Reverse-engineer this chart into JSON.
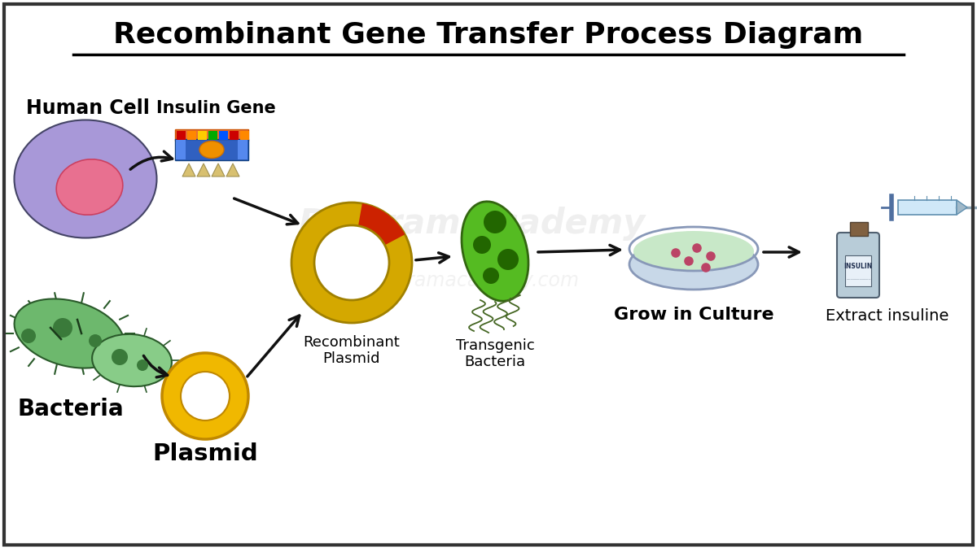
{
  "title": "Recombinant Gene Transfer Process Diagram",
  "background_color": "#ffffff",
  "border_color": "#333333",
  "labels": {
    "human_cell": "Human Cell",
    "insulin_gene": "Insulin Gene",
    "bacteria": "Bacteria",
    "plasmid": "Plasmid",
    "recombinant_plasmid": "Recombinant\nPlasmid",
    "transgenic_bacteria": "Transgenic\nBacteria",
    "grow_in_culture": "Grow in Culture",
    "extract_insuline": "Extract insuline"
  },
  "colors": {
    "human_cell_body": "#a898d8",
    "human_cell_nucleus": "#e87090",
    "bacteria_body": "#6db86d",
    "bacteria_dark": "#3a7a3a",
    "plasmid_yellow": "#f0b800",
    "recombinant_plasmid_yellow": "#d4a800",
    "recombinant_plasmid_red": "#cc2200",
    "arrow_color": "#111111",
    "title_color": "#000000"
  },
  "title_fontsize": 26,
  "label_fontsize": 16
}
